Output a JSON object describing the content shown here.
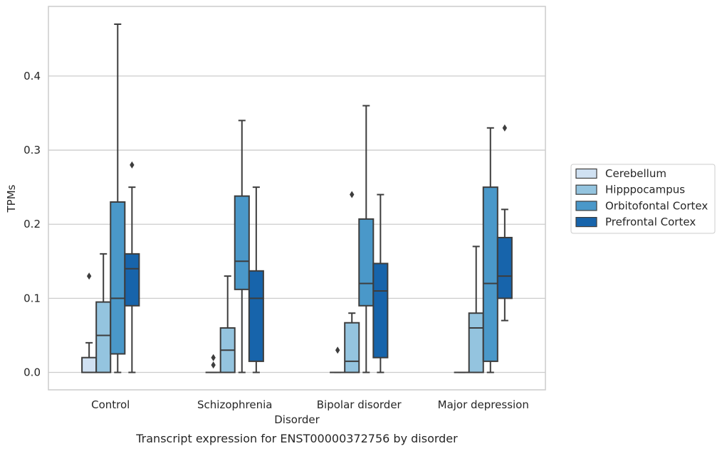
{
  "chart_data": {
    "type": "box",
    "caption": "Transcript expression for ENST00000372756 by disorder",
    "xlabel": "Disorder",
    "ylabel": "TPMs",
    "ylim": [
      -0.0235,
      0.494
    ],
    "yticks": [
      "0.0",
      "0.1",
      "0.2",
      "0.3",
      "0.4"
    ],
    "ytick_values": [
      0,
      0.1,
      0.2,
      0.3,
      0.4
    ],
    "grid": "horizontal",
    "legend_position": "right",
    "categories": [
      "Control",
      "Schizophrenia",
      "Bipolar disorder",
      "Major depression"
    ],
    "series": [
      {
        "name": "Cerebellum",
        "color": "#d0e1f2",
        "boxes": [
          {
            "q1": 0,
            "median": 0,
            "q3": 0.02,
            "whislo": 0,
            "whishi": 0.04,
            "fliers": [
              0.13
            ]
          },
          {
            "q1": 0,
            "median": 0,
            "q3": 0,
            "whislo": 0,
            "whishi": 0,
            "fliers": [
              0.01,
              0.02
            ]
          },
          {
            "q1": 0,
            "median": 0,
            "q3": 0,
            "whislo": 0,
            "whishi": 0,
            "fliers": [
              0.03
            ]
          },
          {
            "q1": 0,
            "median": 0,
            "q3": 0,
            "whislo": 0,
            "whishi": 0,
            "fliers": []
          }
        ]
      },
      {
        "name": "Hipppocampus",
        "color": "#94c4df",
        "boxes": [
          {
            "q1": 0,
            "median": 0.05,
            "q3": 0.095,
            "whislo": 0,
            "whishi": 0.16,
            "fliers": []
          },
          {
            "q1": 0,
            "median": 0.03,
            "q3": 0.06,
            "whislo": 0,
            "whishi": 0.13,
            "fliers": []
          },
          {
            "q1": 0,
            "median": 0.015,
            "q3": 0.067,
            "whislo": 0,
            "whishi": 0.08,
            "fliers": [
              0.24
            ]
          },
          {
            "q1": 0,
            "median": 0.06,
            "q3": 0.08,
            "whislo": 0,
            "whishi": 0.17,
            "fliers": []
          }
        ]
      },
      {
        "name": "Orbitofontal Cortex",
        "color": "#4a98c9",
        "boxes": [
          {
            "q1": 0.025,
            "median": 0.1,
            "q3": 0.23,
            "whislo": 0,
            "whishi": 0.47,
            "fliers": []
          },
          {
            "q1": 0.112,
            "median": 0.15,
            "q3": 0.238,
            "whislo": 0,
            "whishi": 0.34,
            "fliers": []
          },
          {
            "q1": 0.09,
            "median": 0.12,
            "q3": 0.207,
            "whislo": 0,
            "whishi": 0.36,
            "fliers": []
          },
          {
            "q1": 0.015,
            "median": 0.12,
            "q3": 0.25,
            "whislo": 0,
            "whishi": 0.33,
            "fliers": []
          }
        ]
      },
      {
        "name": "Prefrontal Cortex",
        "color": "#1764ab",
        "boxes": [
          {
            "q1": 0.09,
            "median": 0.14,
            "q3": 0.16,
            "whislo": 0,
            "whishi": 0.25,
            "fliers": [
              0.28
            ]
          },
          {
            "q1": 0.015,
            "median": 0.1,
            "q3": 0.137,
            "whislo": 0,
            "whishi": 0.25,
            "fliers": []
          },
          {
            "q1": 0.02,
            "median": 0.11,
            "q3": 0.147,
            "whislo": 0,
            "whishi": 0.24,
            "fliers": []
          },
          {
            "q1": 0.1,
            "median": 0.13,
            "q3": 0.182,
            "whislo": 0.07,
            "whishi": 0.22,
            "fliers": [
              0.33
            ]
          }
        ]
      }
    ]
  }
}
